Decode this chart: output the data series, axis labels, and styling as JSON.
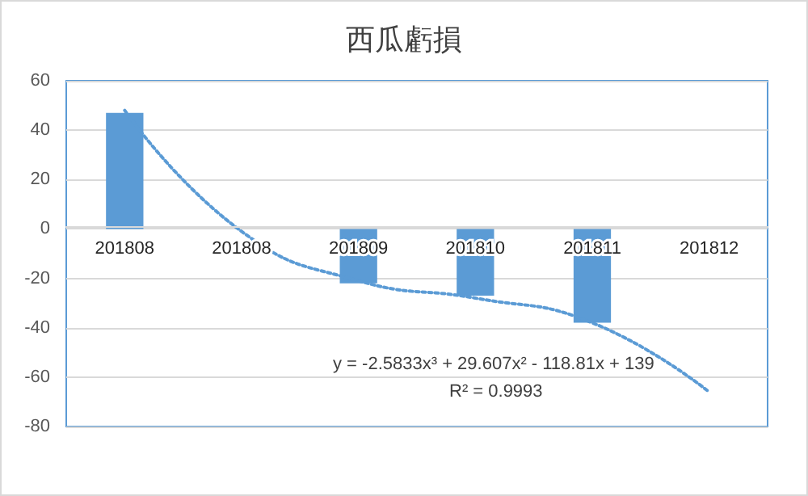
{
  "chart_data": {
    "type": "bar",
    "title": "西瓜虧損",
    "categories": [
      "201808",
      "201808",
      "201809",
      "201810",
      "201811",
      "201812"
    ],
    "series": [
      {
        "color": "#5b9bd5",
        "values": [
          47,
          null,
          -22,
          -27,
          -38,
          null
        ]
      },
      {
        "type": "line",
        "color": "#5b9bd5",
        "line_style": "dotted",
        "marker": "none",
        "values": [
          48,
          -1,
          -21,
          -28,
          -38,
          -66
        ]
      }
    ],
    "ylim": [
      -80,
      60
    ],
    "yticks": [
      -80,
      -60,
      -40,
      -20,
      0,
      20,
      40,
      60
    ],
    "grid": "y",
    "annotations": [
      "y = -2.5833x³ + 29.607x² - 118.81x + 139",
      "R² = 0.9993"
    ]
  }
}
